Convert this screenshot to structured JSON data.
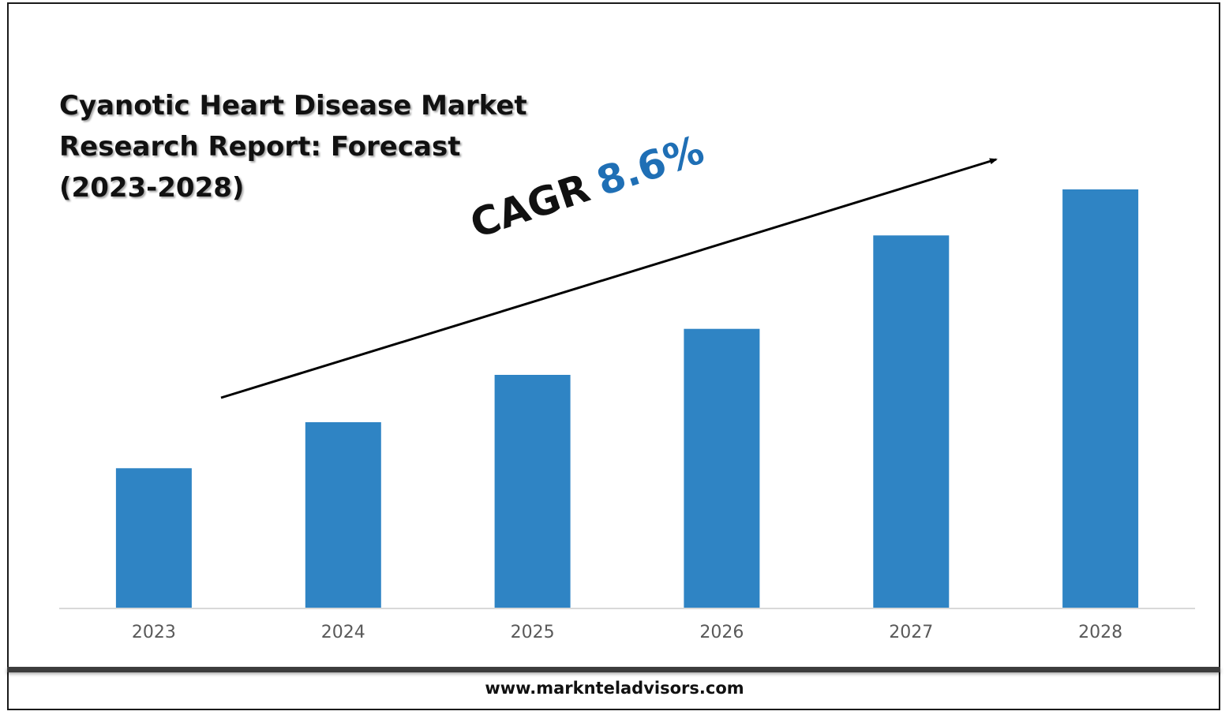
{
  "title": "Cyanotic Heart Disease Market\nResearch Report: Forecast\n(2023-2028)",
  "cagr": {
    "label": "CAGR",
    "value": "8.6%"
  },
  "footer": {
    "url": "www.marknteladvisors.com"
  },
  "colors": {
    "bar": "#2f84c4",
    "axis": "#d9d9d9",
    "tick_label": "#595959",
    "cagr_value": "#1f6fb5"
  },
  "chart_data": {
    "type": "bar",
    "title": "Cyanotic Heart Disease Market Research Report: Forecast (2023-2028)",
    "categories": [
      "2023",
      "2024",
      "2025",
      "2026",
      "2027",
      "2028"
    ],
    "series": [
      {
        "values": [
          1.0,
          1.33,
          1.67,
          2.0,
          2.67,
          3.0
        ]
      }
    ],
    "ylim": [
      0,
      3.0
    ],
    "xlabel": "",
    "ylabel": "",
    "grid": false,
    "legend": "none",
    "annotations": [
      "CAGR 8.6%"
    ]
  }
}
